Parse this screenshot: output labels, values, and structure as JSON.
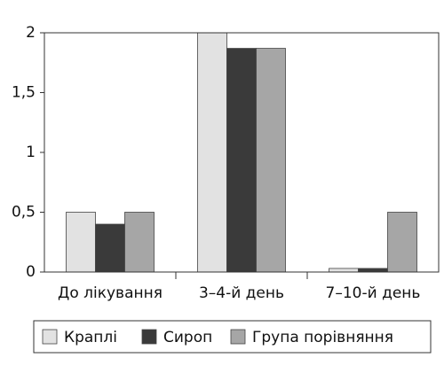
{
  "chart_data": {
    "type": "bar",
    "categories": [
      "До лікування",
      "3–4-й день",
      "7–10-й день"
    ],
    "series": [
      {
        "name": "Краплі",
        "color": "#e2e2e2",
        "values": [
          0.5,
          2,
          0.03
        ]
      },
      {
        "name": "Сироп",
        "color": "#3a3a3a",
        "values": [
          0.4,
          1.87,
          0.03
        ]
      },
      {
        "name": "Група порівняння",
        "color": "#a6a6a6",
        "values": [
          0.5,
          1.87,
          0.5
        ]
      }
    ],
    "ylim": [
      0,
      2
    ],
    "yticks": [
      0,
      {
        "value": 0.5,
        "label": "0,5"
      },
      1,
      {
        "value": 1.5,
        "label": "1,5"
      },
      2
    ],
    "grid": false
  }
}
